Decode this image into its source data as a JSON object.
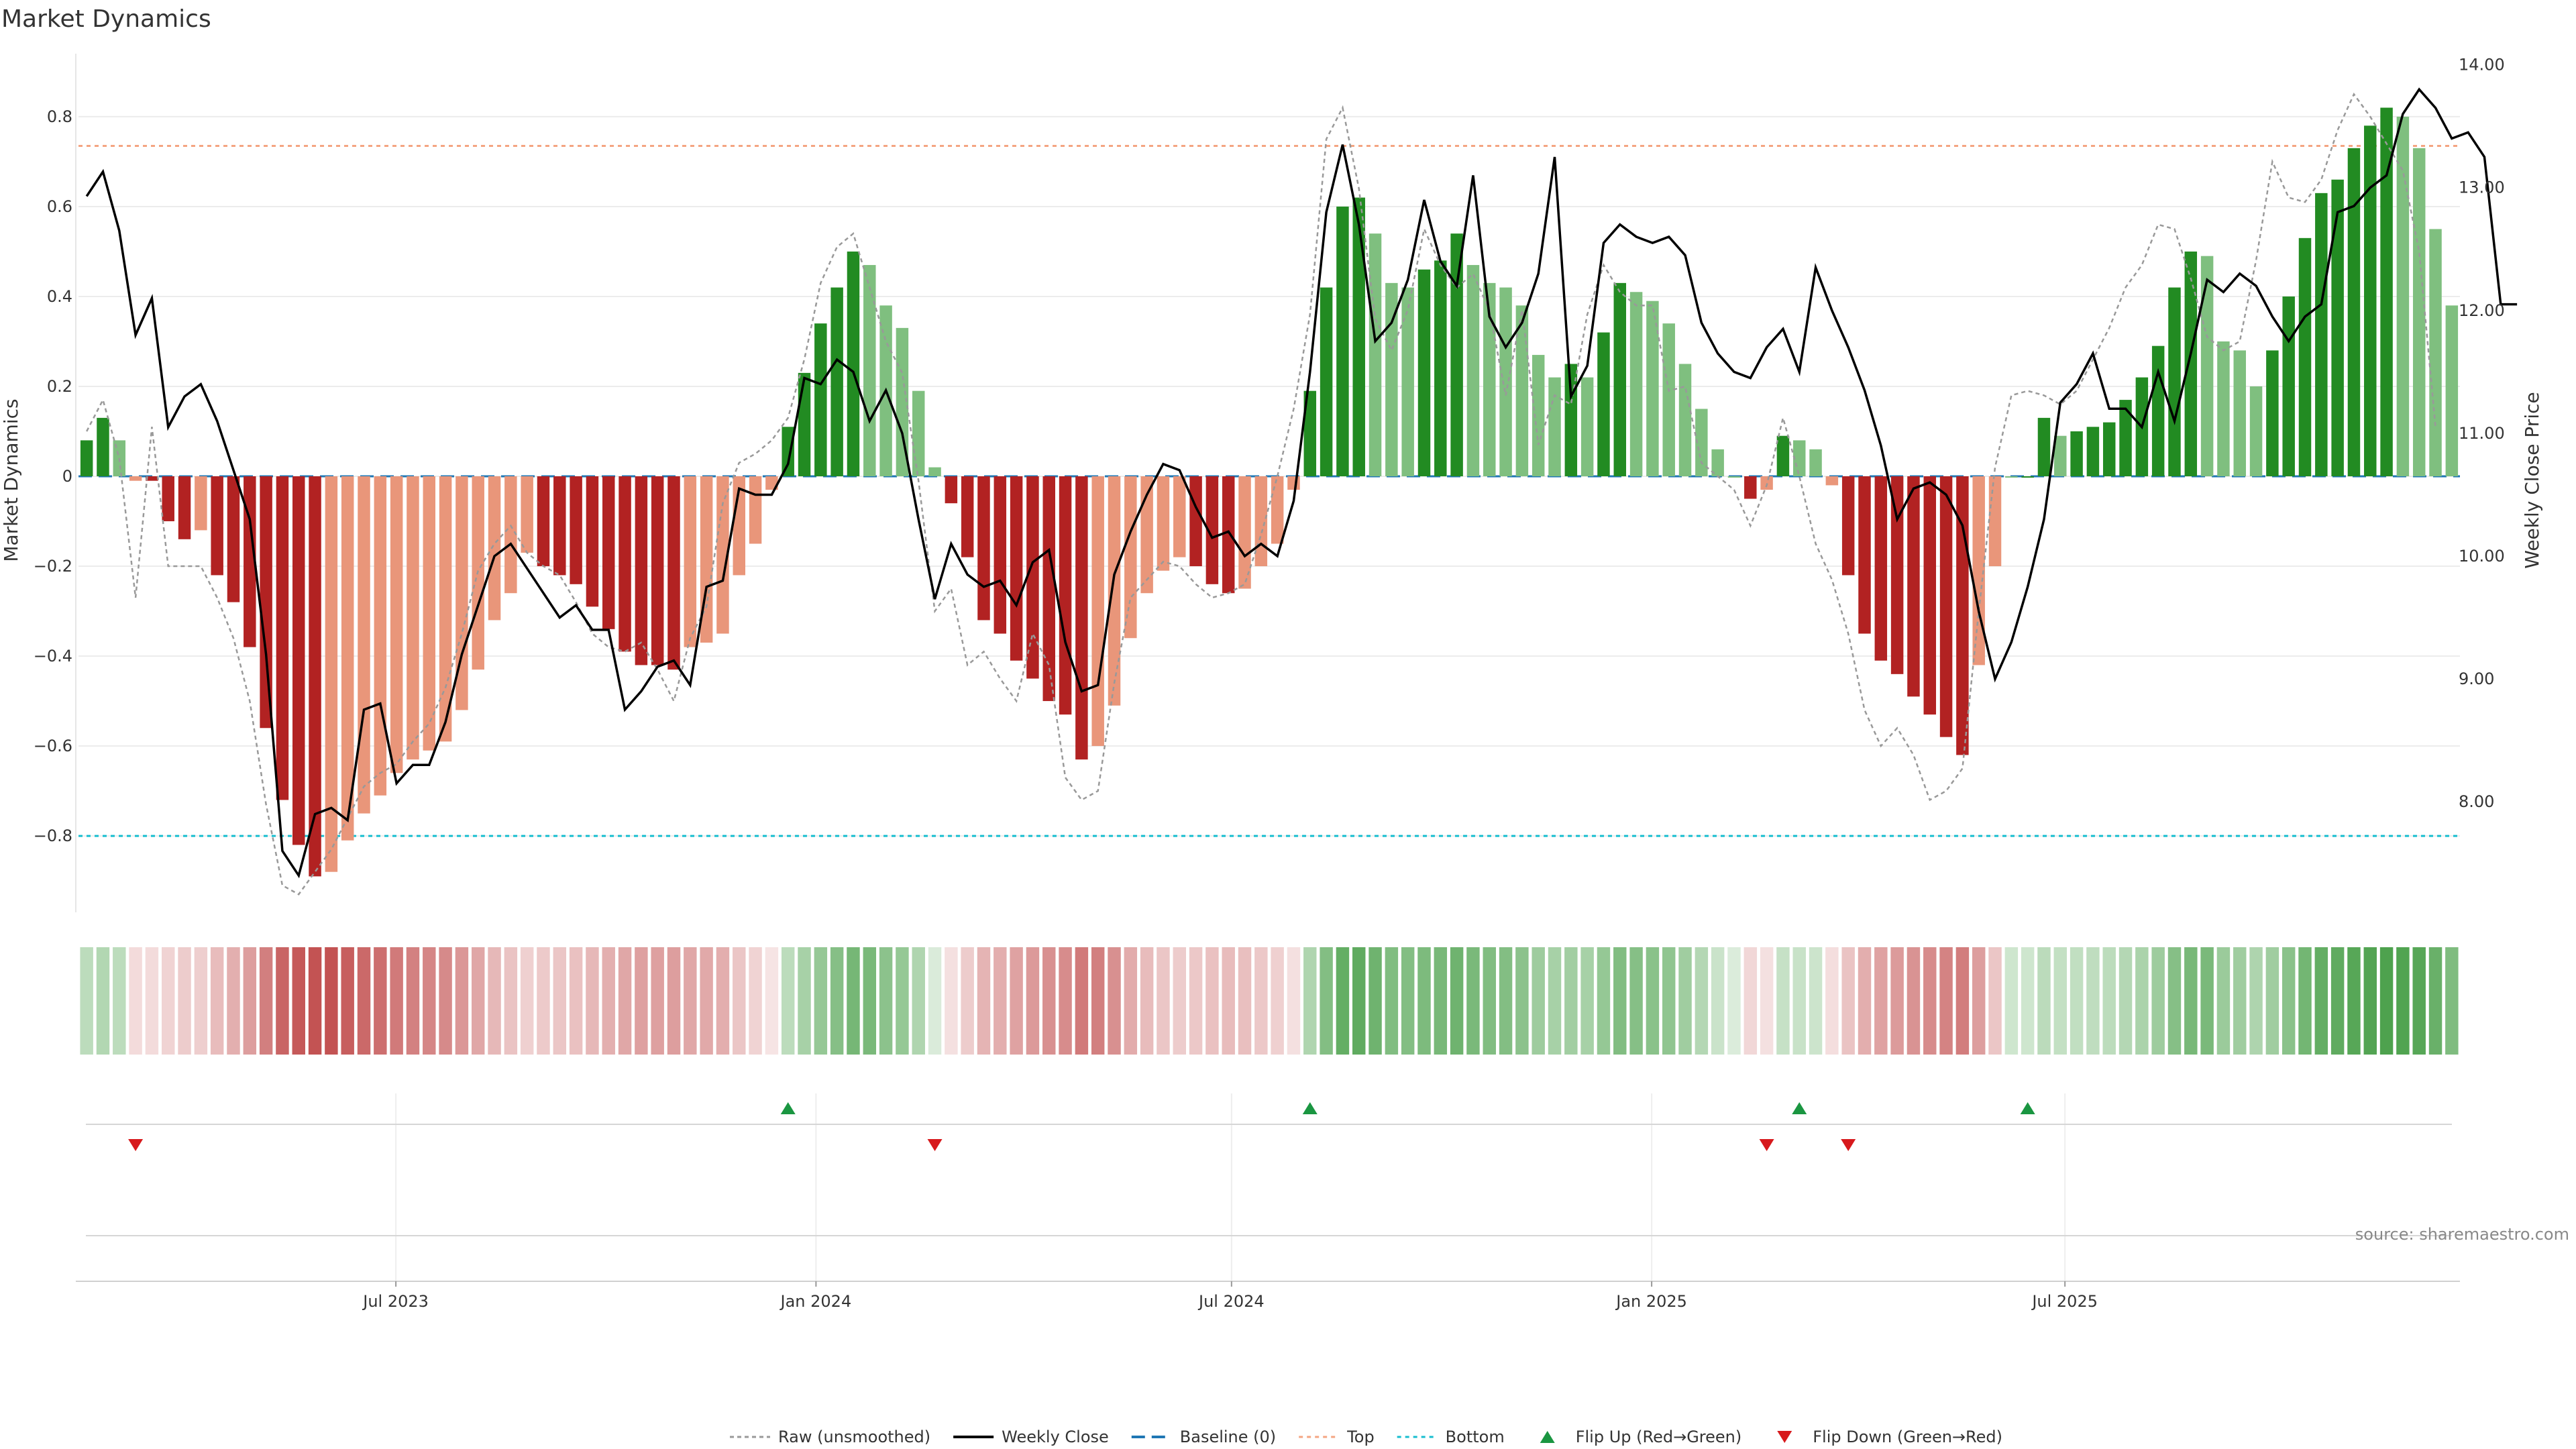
{
  "chart_data": {
    "type": "bar",
    "title": "Market Dynamics",
    "ylabel": "Market Dynamics",
    "y2label": "Weekly Close Price",
    "ylim": [
      -0.97,
      0.97
    ],
    "y2lim": [
      7.1,
      14.2
    ],
    "x_start": "2023-02-12",
    "x_end": "2025-12-21",
    "y_ticks": [
      "−0.8",
      "−0.6",
      "−0.4",
      "−0.2",
      "0",
      "0.2",
      "0.4",
      "0.6",
      "0.8"
    ],
    "y_tick_values": [
      -0.8,
      -0.6,
      -0.4,
      -0.2,
      0,
      0.2,
      0.4,
      0.6,
      0.8
    ],
    "y2_ticks": [
      "8.00",
      "9.00",
      "10.00",
      "11.00",
      "12.00",
      "13.00",
      "14.00"
    ],
    "y2_tick_values": [
      8,
      9,
      10,
      11,
      12,
      13,
      14
    ],
    "x_ticks": [
      {
        "label": "Jul 2023",
        "date": "2023-07-01"
      },
      {
        "label": "Jan 2024",
        "date": "2024-01-01"
      },
      {
        "label": "Jul 2024",
        "date": "2024-07-01"
      },
      {
        "label": "Jan 2025",
        "date": "2025-01-01"
      },
      {
        "label": "Jul 2025",
        "date": "2025-07-01"
      }
    ],
    "top_line": 0.735,
    "bottom_line": -0.8,
    "colors": {
      "strong_green": "#228b22",
      "light_green": "#7fbf7f",
      "strong_red": "#b22222",
      "light_red": "#e9967a",
      "price": "#000000",
      "raw": "#999999",
      "baseline": "#1f77b4",
      "top": "#f4a582",
      "bottom": "#17becf",
      "flip_up": "#1a9641",
      "flip_down": "#d7191c"
    },
    "hist": [
      0.08,
      0.13,
      0.08,
      -0.01,
      -0.01,
      -0.1,
      -0.14,
      -0.12,
      -0.22,
      -0.28,
      -0.38,
      -0.56,
      -0.72,
      -0.82,
      -0.89,
      -0.88,
      -0.81,
      -0.75,
      -0.71,
      -0.66,
      -0.63,
      -0.61,
      -0.59,
      -0.52,
      -0.43,
      -0.32,
      -0.26,
      -0.17,
      -0.2,
      -0.22,
      -0.24,
      -0.29,
      -0.34,
      -0.39,
      -0.42,
      -0.42,
      -0.43,
      -0.38,
      -0.37,
      -0.35,
      -0.22,
      -0.15,
      -0.03,
      0.11,
      0.23,
      0.34,
      0.42,
      0.5,
      0.47,
      0.38,
      0.33,
      0.19,
      0.02,
      -0.06,
      -0.18,
      -0.32,
      -0.35,
      -0.41,
      -0.45,
      -0.5,
      -0.53,
      -0.63,
      -0.6,
      -0.51,
      -0.36,
      -0.26,
      -0.21,
      -0.18,
      -0.2,
      -0.24,
      -0.26,
      -0.25,
      -0.2,
      -0.15,
      -0.03,
      0.19,
      0.42,
      0.6,
      0.62,
      0.54,
      0.43,
      0.42,
      0.46,
      0.48,
      0.54,
      0.47,
      0.43,
      0.42,
      0.38,
      0.27,
      0.22,
      0.25,
      0.22,
      0.32,
      0.43,
      0.41,
      0.39,
      0.34,
      0.25,
      0.15,
      0.06,
      0.0,
      -0.05,
      -0.03,
      0.09,
      0.08,
      0.06,
      -0.02,
      -0.22,
      -0.35,
      -0.41,
      -0.44,
      -0.49,
      -0.53,
      -0.58,
      -0.62,
      -0.42,
      -0.2,
      0.0,
      0.0,
      0.13,
      0.09,
      0.1,
      0.11,
      0.12,
      0.17,
      0.22,
      0.29,
      0.42,
      0.5,
      0.49,
      0.3,
      0.28,
      0.2,
      0.28,
      0.4,
      0.53,
      0.63,
      0.66,
      0.73,
      0.78,
      0.82,
      0.8,
      0.73,
      0.55,
      0.38
    ],
    "raw": [
      0.1,
      0.17,
      0.04,
      -0.27,
      0.11,
      -0.2,
      -0.2,
      -0.2,
      -0.27,
      -0.36,
      -0.5,
      -0.73,
      -0.91,
      -0.93,
      -0.88,
      -0.83,
      -0.76,
      -0.69,
      -0.66,
      -0.64,
      -0.59,
      -0.55,
      -0.47,
      -0.35,
      -0.21,
      -0.15,
      -0.11,
      -0.17,
      -0.2,
      -0.22,
      -0.28,
      -0.35,
      -0.38,
      -0.39,
      -0.37,
      -0.43,
      -0.5,
      -0.36,
      -0.29,
      -0.06,
      0.03,
      0.05,
      0.08,
      0.13,
      0.26,
      0.43,
      0.51,
      0.54,
      0.42,
      0.3,
      0.23,
      -0.01,
      -0.3,
      -0.25,
      -0.42,
      -0.39,
      -0.45,
      -0.5,
      -0.35,
      -0.42,
      -0.67,
      -0.72,
      -0.7,
      -0.46,
      -0.27,
      -0.23,
      -0.19,
      -0.2,
      -0.24,
      -0.27,
      -0.26,
      -0.24,
      -0.13,
      0.0,
      0.15,
      0.36,
      0.75,
      0.82,
      0.64,
      0.35,
      0.28,
      0.37,
      0.55,
      0.47,
      0.42,
      0.45,
      0.37,
      0.18,
      0.37,
      0.07,
      0.18,
      0.16,
      0.36,
      0.47,
      0.41,
      0.38,
      0.38,
      0.19,
      0.2,
      0.03,
      0.0,
      -0.03,
      -0.11,
      -0.02,
      0.13,
      0.0,
      -0.15,
      -0.23,
      -0.35,
      -0.52,
      -0.6,
      -0.56,
      -0.62,
      -0.72,
      -0.7,
      -0.65,
      -0.3,
      0.02,
      0.18,
      0.19,
      0.18,
      0.16,
      0.19,
      0.26,
      0.33,
      0.42,
      0.47,
      0.56,
      0.55,
      0.44,
      0.31,
      0.28,
      0.3,
      0.48,
      0.7,
      0.62,
      0.61,
      0.66,
      0.77,
      0.85,
      0.8,
      0.74,
      0.68,
      0.5,
      0.11
    ],
    "price": [
      12.93,
      13.13,
      12.65,
      11.8,
      12.1,
      11.05,
      11.3,
      11.4,
      11.1,
      10.7,
      10.3,
      9.2,
      7.6,
      7.4,
      7.9,
      7.95,
      7.85,
      8.75,
      8.8,
      8.15,
      8.3,
      8.3,
      8.65,
      9.2,
      9.6,
      10.0,
      10.1,
      9.9,
      9.7,
      9.5,
      9.6,
      9.4,
      9.4,
      8.75,
      8.9,
      9.1,
      9.15,
      8.95,
      9.75,
      9.8,
      10.55,
      10.5,
      10.5,
      10.75,
      11.45,
      11.4,
      11.6,
      11.5,
      11.1,
      11.35,
      11.0,
      10.3,
      9.65,
      10.1,
      9.85,
      9.75,
      9.8,
      9.6,
      9.95,
      10.05,
      9.3,
      8.9,
      8.95,
      9.85,
      10.2,
      10.5,
      10.75,
      10.7,
      10.4,
      10.15,
      10.2,
      10.0,
      10.1,
      10.0,
      10.45,
      11.5,
      12.8,
      13.35,
      12.7,
      11.75,
      11.9,
      12.25,
      12.9,
      12.4,
      12.2,
      13.1,
      11.95,
      11.7,
      11.9,
      12.3,
      13.25,
      11.3,
      11.55,
      12.55,
      12.7,
      12.6,
      12.55,
      12.6,
      12.45,
      11.9,
      11.65,
      11.5,
      11.45,
      11.7,
      11.85,
      11.5,
      12.35,
      12.0,
      11.7,
      11.35,
      10.9,
      10.3,
      10.55,
      10.6,
      10.5,
      10.25,
      9.55,
      9.0,
      9.3,
      9.75,
      10.3,
      11.25,
      11.4,
      11.65,
      11.2,
      11.2,
      11.05,
      11.5,
      11.1,
      11.65,
      12.25,
      12.15,
      12.3,
      12.2,
      11.95,
      11.75,
      11.95,
      12.05,
      12.8,
      12.85,
      13.0,
      13.1,
      13.6,
      13.8,
      13.65,
      13.4,
      13.45,
      13.25,
      12.05,
      12.05
    ],
    "strip": [
      0.3,
      0.35,
      0.3,
      0.16,
      0.16,
      0.2,
      0.23,
      0.22,
      0.3,
      0.36,
      0.44,
      0.58,
      0.7,
      0.75,
      0.78,
      0.78,
      0.73,
      0.68,
      0.65,
      0.6,
      0.57,
      0.55,
      0.53,
      0.47,
      0.4,
      0.32,
      0.27,
      0.21,
      0.24,
      0.26,
      0.28,
      0.32,
      0.36,
      0.4,
      0.43,
      0.43,
      0.44,
      0.4,
      0.39,
      0.37,
      0.26,
      0.2,
      0.12,
      0.3,
      0.4,
      0.48,
      0.55,
      0.62,
      0.6,
      0.52,
      0.48,
      0.36,
      0.17,
      0.14,
      0.23,
      0.34,
      0.37,
      0.42,
      0.46,
      0.5,
      0.52,
      0.6,
      0.58,
      0.5,
      0.38,
      0.3,
      0.26,
      0.23,
      0.25,
      0.28,
      0.3,
      0.29,
      0.25,
      0.21,
      0.14,
      0.36,
      0.56,
      0.7,
      0.72,
      0.65,
      0.57,
      0.56,
      0.59,
      0.61,
      0.65,
      0.6,
      0.57,
      0.56,
      0.52,
      0.44,
      0.4,
      0.42,
      0.4,
      0.48,
      0.57,
      0.55,
      0.53,
      0.5,
      0.43,
      0.34,
      0.24,
      0.16,
      0.18,
      0.14,
      0.26,
      0.25,
      0.23,
      0.15,
      0.27,
      0.37,
      0.42,
      0.45,
      0.49,
      0.52,
      0.56,
      0.59,
      0.44,
      0.26,
      0.22,
      0.22,
      0.31,
      0.27,
      0.28,
      0.29,
      0.3,
      0.34,
      0.38,
      0.44,
      0.55,
      0.61,
      0.6,
      0.45,
      0.43,
      0.37,
      0.43,
      0.53,
      0.63,
      0.7,
      0.72,
      0.76,
      0.78,
      0.8,
      0.79,
      0.76,
      0.68,
      0.58
    ],
    "flip_up_idx": [
      43,
      75,
      105,
      119
    ],
    "flip_down_idx": [
      3,
      52,
      103,
      108
    ]
  },
  "legend": [
    {
      "label": "Raw (unsmoothed)",
      "kind": "raw"
    },
    {
      "label": "Weekly Close",
      "kind": "price"
    },
    {
      "label": "Baseline (0)",
      "kind": "baseline"
    },
    {
      "label": "Top",
      "kind": "top"
    },
    {
      "label": "Bottom",
      "kind": "bottom"
    },
    {
      "label": "Flip Up (Red→Green)",
      "kind": "flip_up"
    },
    {
      "label": "Flip Down (Green→Red)",
      "kind": "flip_down"
    }
  ],
  "source": "source: sharemaestro.com"
}
